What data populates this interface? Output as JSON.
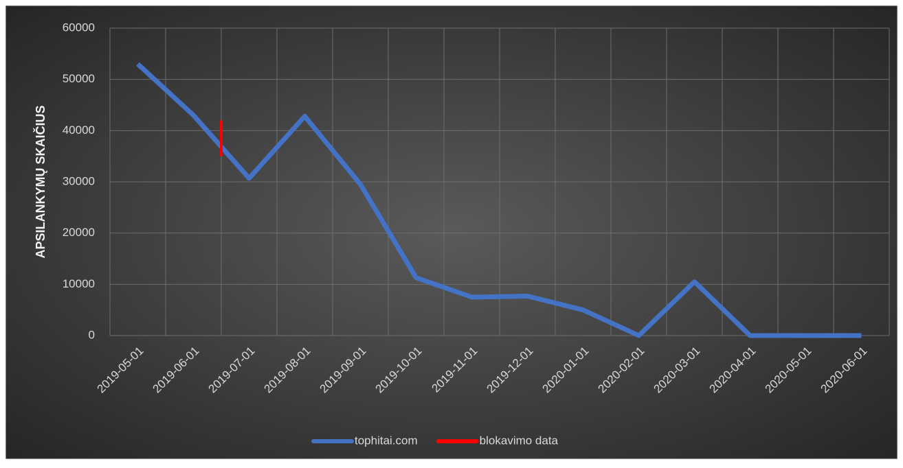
{
  "chart_data": {
    "type": "line",
    "y_label": "APSILANKYMŲ SKAIČIUS",
    "categories": [
      "2019-05-01",
      "2019-06-01",
      "2019-07-01",
      "2019-08-01",
      "2019-09-01",
      "2019-10-01",
      "2019-11-01",
      "2019-12-01",
      "2020-01-01",
      "2020-02-01",
      "2020-03-01",
      "2020-04-01",
      "2020-05-01",
      "2020-06-01"
    ],
    "series": [
      {
        "name": "tophitai.com",
        "color": "#4472c4",
        "values": [
          53000,
          43000,
          30700,
          42800,
          29500,
          11300,
          7500,
          7700,
          5000,
          0,
          10500,
          0,
          0,
          0
        ]
      },
      {
        "name": "blokavimo data",
        "color": "#ff0000",
        "x": [
          1.5,
          1.5
        ],
        "values": [
          35000,
          42000
        ]
      }
    ],
    "ylim": [
      0,
      60000
    ],
    "yticks": [
      0,
      10000,
      20000,
      30000,
      40000,
      50000,
      60000
    ],
    "grid": true,
    "legend": "bottom"
  }
}
